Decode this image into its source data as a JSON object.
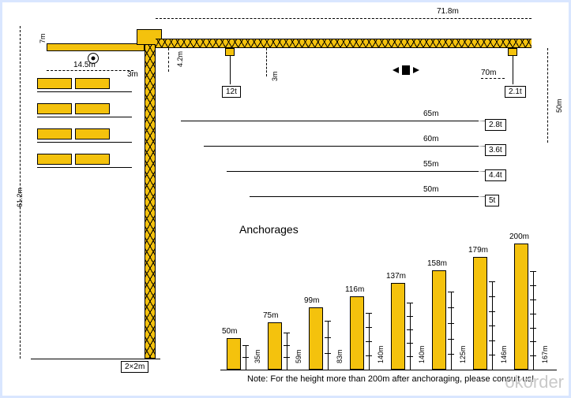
{
  "diagram": {
    "type": "engineering-diagram-crane",
    "colors": {
      "crane": "#f4c20d",
      "line": "#000000",
      "bg": "#ffffff",
      "panel": "#d9e6ff",
      "watermark": "#c9c9c9"
    },
    "dimensions": {
      "mast_height_label": "61.2m",
      "head_height_label": "7m",
      "counter_jib_label": "14.5m",
      "head_clearance_label": "4.2m",
      "trolley_in_clearance": "3m",
      "trolley_out_clearance": "3m",
      "jib_radius_label": "71.8m",
      "free_height_label": "50m",
      "end_label": "70m",
      "base_label": "2×2m"
    },
    "load_chart": {
      "trolley_in": "12t",
      "trolley_out": "2.1t",
      "jibs": [
        {
          "length": "65m",
          "capacity": "2.8t"
        },
        {
          "length": "60m",
          "capacity": "3.6t"
        },
        {
          "length": "55m",
          "capacity": "4.4t"
        },
        {
          "length": "50m",
          "capacity": "5t"
        }
      ]
    },
    "anchorages": {
      "title": "Anchorages",
      "bars": [
        {
          "height_m": 50,
          "prev_span": "35m"
        },
        {
          "height_m": 75,
          "prev_span": "59m"
        },
        {
          "height_m": 99,
          "prev_span": "83m"
        },
        {
          "height_m": 116,
          "prev_span": "140m"
        },
        {
          "height_m": 137,
          "prev_span": "140m"
        },
        {
          "height_m": 158,
          "prev_span": "125m"
        },
        {
          "height_m": 179,
          "prev_span": "146m"
        },
        {
          "height_m": 200,
          "prev_span": "167m"
        }
      ],
      "height_unit": "m",
      "max_height": 200,
      "bar_color": "#f4c20d"
    },
    "note": "Note: For the height more than 200m after anchoraging, please consult us!",
    "watermark": "okorder"
  }
}
